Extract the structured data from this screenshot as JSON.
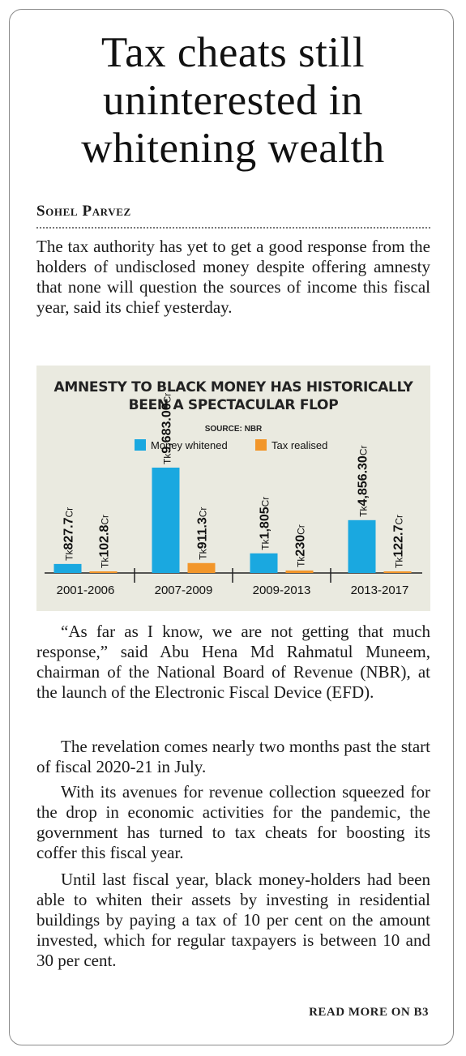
{
  "article": {
    "headline": [
      "Tax cheats still",
      "uninterested in",
      "whitening wealth"
    ],
    "byline": "Sohel Parvez",
    "lead": "The tax authority has yet to get a good response from the holders of undisclosed money despite offering amnesty that none will question the sources of income this fiscal year, said its chief yesterday.",
    "paragraphs": [
      "“As far as I know, we are not getting that much response,” said Abu Hena Md Rahmatul Muneem, chairman of the National Board of Revenue (NBR), at the launch of the Electronic Fiscal Device (EFD).",
      "The revelation comes nearly two months past the start of fiscal 2020-21 in July.",
      "With its avenues for revenue collection squeezed for the drop in economic activities for the pandemic, the government has turned to tax cheats for boosting its coffer this fiscal year.",
      "Until last fiscal year, black money-holders had been able to whiten their assets by investing in residential buildings by paying a tax of 10 per cent on the amount invested, which for regular taxpayers is between 10 and 30 per cent."
    ],
    "read_more": "READ MORE ON B3"
  },
  "chart_data": {
    "type": "bar",
    "title": [
      "AMNESTY TO BLACK MONEY HAS HISTORICALLY",
      "BEEN A SPECTACULAR FLOP"
    ],
    "source": "SOURCE: NBR",
    "categories": [
      "2001-2006",
      "2007-2009",
      "2009-2013",
      "2013-2017"
    ],
    "series": [
      {
        "name": "Money whitened",
        "color": "#1aa8e0",
        "values": [
          827.7,
          9683.0,
          1805,
          4856.3
        ],
        "labels": [
          "827.7",
          "9,683.00",
          "1,805",
          "4,856.30"
        ]
      },
      {
        "name": "Tax realised",
        "color": "#f2962a",
        "values": [
          102.8,
          911.3,
          230,
          122.7
        ],
        "labels": [
          "102.8",
          "911.3",
          "230",
          "122.7"
        ]
      }
    ],
    "label_prefix": "Tk",
    "label_suffix": "Cr",
    "ylim": [
      0,
      9683
    ],
    "legend_position": "top",
    "grid": false
  }
}
